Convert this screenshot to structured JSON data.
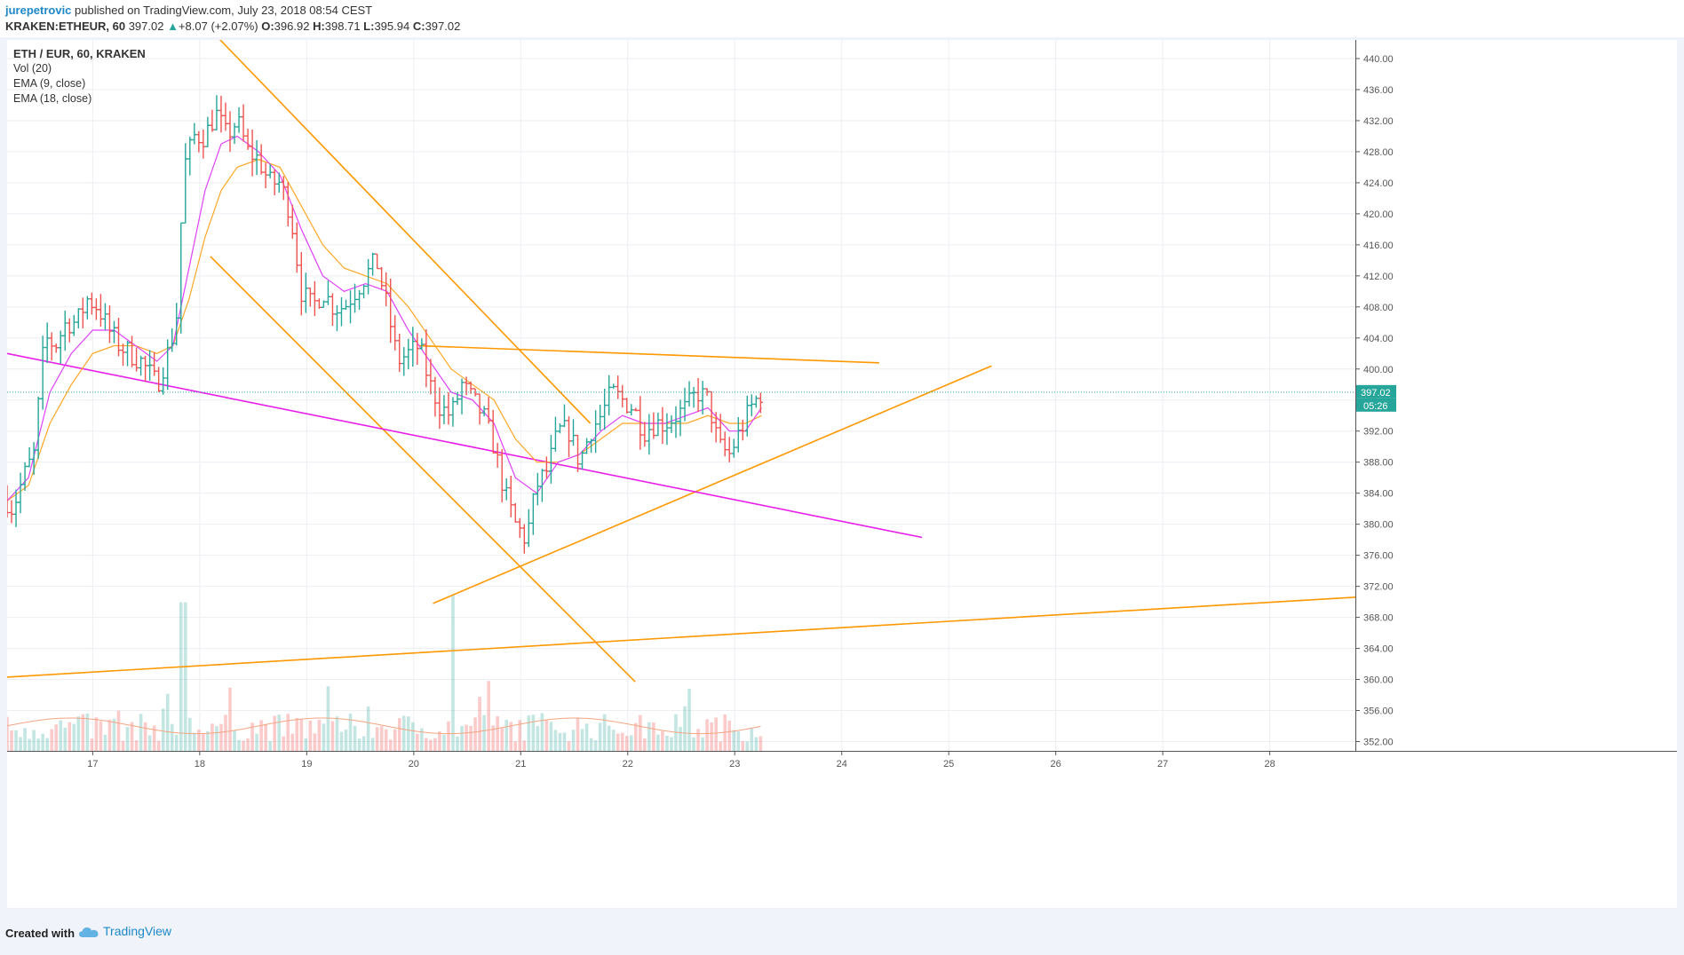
{
  "header": {
    "author": "jurepetrovic",
    "published": " published on TradingView.com, July 23, 2018 08:54 CEST",
    "symbol": "KRAKEN:ETHEUR, 60",
    "last": "397.02",
    "change": "+8.07 (+2.07%)",
    "o_label": "O:",
    "o": "396.92",
    "h_label": "H:",
    "h": "398.71",
    "l_label": "L:",
    "l": "395.94",
    "c_label": "C:",
    "c": "397.02"
  },
  "legend": {
    "symbol": "ETH / EUR, 60, KRAKEN",
    "vol": "Vol (20)",
    "ema9": "EMA (9, close)",
    "ema18": "EMA (18, close)"
  },
  "footer": {
    "created": "Created with",
    "brand": "TradingView"
  },
  "colors": {
    "up": "#26a69a",
    "down": "#ef5350",
    "trend": "#ff9800",
    "magenta": "#e91ee9",
    "ema9": "#e040fb",
    "ema18": "#ffa726",
    "volma": "#f4a582"
  },
  "chart_data": {
    "type": "candlestick",
    "x_ticks": [
      "17",
      "18",
      "19",
      "20",
      "21",
      "22",
      "23",
      "24",
      "25",
      "26",
      "27",
      "28"
    ],
    "y_ticks": [
      "440.00",
      "436.00",
      "432.00",
      "428.00",
      "424.00",
      "420.00",
      "416.00",
      "412.00",
      "408.00",
      "404.00",
      "400.00",
      "396.00",
      "392.00",
      "388.00",
      "384.00",
      "380.00",
      "376.00",
      "372.00",
      "368.00",
      "364.00",
      "360.00",
      "356.00",
      "352.00"
    ],
    "last_price": "397.02",
    "countdown": "05:26",
    "y_range": [
      350.8,
      442.4
    ],
    "x_range": [
      16.2,
      28.8
    ],
    "price_path": [
      [
        16.2,
        383
      ],
      [
        16.25,
        382
      ],
      [
        16.35,
        386
      ],
      [
        16.45,
        389
      ],
      [
        16.55,
        404
      ],
      [
        16.65,
        403
      ],
      [
        16.75,
        406
      ],
      [
        16.85,
        406
      ],
      [
        16.95,
        409
      ],
      [
        17.05,
        408
      ],
      [
        17.15,
        405
      ],
      [
        17.25,
        403
      ],
      [
        17.35,
        402
      ],
      [
        17.45,
        401
      ],
      [
        17.6,
        398
      ],
      [
        17.7,
        402
      ],
      [
        17.78,
        406
      ],
      [
        17.85,
        426
      ],
      [
        17.95,
        430
      ],
      [
        18.05,
        430
      ],
      [
        18.15,
        433
      ],
      [
        18.25,
        430
      ],
      [
        18.35,
        432
      ],
      [
        18.45,
        428
      ],
      [
        18.55,
        427
      ],
      [
        18.65,
        424
      ],
      [
        18.75,
        424
      ],
      [
        18.85,
        420
      ],
      [
        18.95,
        410
      ],
      [
        19.05,
        408
      ],
      [
        19.15,
        410
      ],
      [
        19.25,
        408
      ],
      [
        19.35,
        408
      ],
      [
        19.45,
        410
      ],
      [
        19.55,
        412
      ],
      [
        19.65,
        414
      ],
      [
        19.75,
        408
      ],
      [
        19.85,
        401
      ],
      [
        19.95,
        402
      ],
      [
        20.05,
        403
      ],
      [
        20.15,
        398
      ],
      [
        20.25,
        395
      ],
      [
        20.35,
        394
      ],
      [
        20.45,
        398
      ],
      [
        20.55,
        396
      ],
      [
        20.65,
        394
      ],
      [
        20.75,
        390
      ],
      [
        20.85,
        384
      ],
      [
        20.95,
        380
      ],
      [
        21.05,
        378
      ],
      [
        21.15,
        385
      ],
      [
        21.25,
        387
      ],
      [
        21.35,
        392
      ],
      [
        21.45,
        392
      ],
      [
        21.55,
        388
      ],
      [
        21.65,
        392
      ],
      [
        21.75,
        394
      ],
      [
        21.85,
        397
      ],
      [
        21.95,
        396
      ],
      [
        22.05,
        395
      ],
      [
        22.15,
        392
      ],
      [
        22.25,
        393
      ],
      [
        22.35,
        393
      ],
      [
        22.45,
        394
      ],
      [
        22.55,
        395
      ],
      [
        22.65,
        397
      ],
      [
        22.75,
        396
      ],
      [
        22.85,
        390
      ],
      [
        22.95,
        389
      ],
      [
        23.05,
        392
      ],
      [
        23.15,
        395
      ],
      [
        23.25,
        397.02
      ]
    ],
    "ema9_path": [
      [
        16.2,
        383
      ],
      [
        16.4,
        386
      ],
      [
        16.6,
        397
      ],
      [
        16.8,
        402
      ],
      [
        17.0,
        405
      ],
      [
        17.2,
        405
      ],
      [
        17.4,
        403
      ],
      [
        17.6,
        401
      ],
      [
        17.75,
        403
      ],
      [
        17.9,
        413
      ],
      [
        18.05,
        423
      ],
      [
        18.2,
        429
      ],
      [
        18.35,
        430
      ],
      [
        18.55,
        428
      ],
      [
        18.75,
        425
      ],
      [
        18.95,
        418
      ],
      [
        19.15,
        412
      ],
      [
        19.35,
        410
      ],
      [
        19.55,
        411
      ],
      [
        19.75,
        410
      ],
      [
        19.95,
        405
      ],
      [
        20.15,
        401
      ],
      [
        20.35,
        397
      ],
      [
        20.55,
        396
      ],
      [
        20.75,
        393
      ],
      [
        20.95,
        386
      ],
      [
        21.15,
        384
      ],
      [
        21.35,
        388
      ],
      [
        21.55,
        389
      ],
      [
        21.75,
        392
      ],
      [
        21.95,
        394
      ],
      [
        22.15,
        393
      ],
      [
        22.35,
        393
      ],
      [
        22.55,
        394
      ],
      [
        22.75,
        395
      ],
      [
        22.95,
        392
      ],
      [
        23.1,
        392
      ],
      [
        23.25,
        395
      ]
    ],
    "ema18_path": [
      [
        16.2,
        383
      ],
      [
        16.4,
        385
      ],
      [
        16.6,
        393
      ],
      [
        16.8,
        398
      ],
      [
        17.0,
        402
      ],
      [
        17.2,
        403
      ],
      [
        17.4,
        403
      ],
      [
        17.6,
        402
      ],
      [
        17.75,
        403
      ],
      [
        17.9,
        409
      ],
      [
        18.05,
        417
      ],
      [
        18.2,
        423
      ],
      [
        18.35,
        426
      ],
      [
        18.55,
        427
      ],
      [
        18.75,
        426
      ],
      [
        18.95,
        421
      ],
      [
        19.15,
        416
      ],
      [
        19.35,
        413
      ],
      [
        19.55,
        412
      ],
      [
        19.75,
        411
      ],
      [
        19.95,
        408
      ],
      [
        20.15,
        404
      ],
      [
        20.35,
        400
      ],
      [
        20.55,
        398
      ],
      [
        20.75,
        396
      ],
      [
        20.95,
        391
      ],
      [
        21.15,
        388
      ],
      [
        21.35,
        388
      ],
      [
        21.55,
        389
      ],
      [
        21.75,
        391
      ],
      [
        21.95,
        393
      ],
      [
        22.15,
        393
      ],
      [
        22.35,
        393
      ],
      [
        22.55,
        393
      ],
      [
        22.75,
        394
      ],
      [
        22.95,
        393
      ],
      [
        23.1,
        393
      ],
      [
        23.25,
        394
      ]
    ],
    "trendlines": [
      {
        "color": "orange",
        "from": [
          18.15,
          443
        ],
        "to": [
          21.65,
          393
        ]
      },
      {
        "color": "orange",
        "from": [
          18.1,
          414.5
        ],
        "to": [
          22.07,
          359.7
        ]
      },
      {
        "color": "orange",
        "from": [
          20.05,
          403
        ],
        "to": [
          24.35,
          400.8
        ]
      },
      {
        "color": "orange",
        "from": [
          20.18,
          369.8
        ],
        "to": [
          25.4,
          400.4
        ]
      },
      {
        "color": "orange",
        "from": [
          16.2,
          360.3
        ],
        "to": [
          28.8,
          370.6
        ]
      },
      {
        "color": "magenta",
        "from": [
          16.2,
          402
        ],
        "to": [
          24.75,
          378.3
        ]
      }
    ],
    "volume_max_hint": [
      [
        17.85,
        0.95
      ],
      [
        20.38,
        1.0
      ]
    ]
  }
}
